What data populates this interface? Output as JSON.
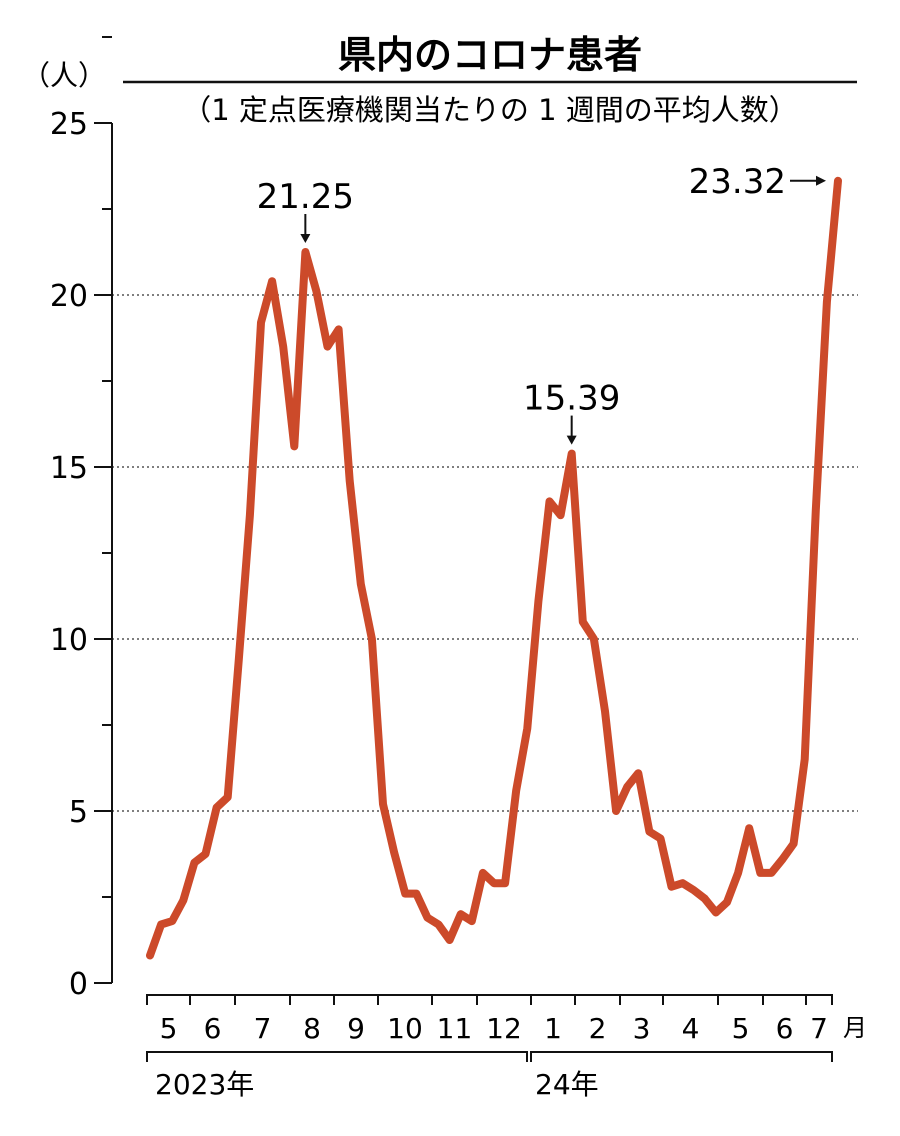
{
  "chart_data": {
    "type": "line",
    "title": "県内のコロナ患者",
    "subtitle": "（1 定点医療機関当たりの 1 週間の平均人数）",
    "ylabel": "（人）",
    "ylim": [
      0,
      25
    ],
    "yticks": [
      "0",
      "5",
      "10",
      "15",
      "20",
      "25"
    ],
    "grid": "dotted horizontal",
    "month_labels": [
      "5",
      "6",
      "7",
      "8",
      "9",
      "10",
      "11",
      "12",
      "1",
      "2",
      "3",
      "4",
      "5",
      "6",
      "7"
    ],
    "month_unit": "月",
    "year_labels": [
      "2023年",
      "24年"
    ],
    "color": "#cc4a2a",
    "values": [
      0.8,
      1.7,
      1.8,
      2.4,
      3.5,
      3.75,
      5.1,
      5.4,
      9.4,
      13.6,
      19.2,
      20.4,
      18.5,
      15.6,
      21.25,
      20.1,
      18.5,
      19.0,
      14.6,
      11.6,
      10.0,
      5.2,
      3.8,
      2.6,
      2.6,
      1.9,
      1.7,
      1.25,
      2.0,
      1.8,
      3.2,
      2.9,
      2.9,
      5.6,
      7.4,
      11.1,
      14.0,
      13.6,
      15.39,
      10.5,
      10.0,
      7.9,
      5.0,
      5.7,
      6.1,
      4.4,
      4.2,
      2.8,
      2.9,
      2.7,
      2.45,
      2.05,
      2.35,
      3.2,
      4.5,
      3.2,
      3.2,
      3.6,
      4.05,
      6.5,
      13.75,
      19.8,
      23.32
    ],
    "annotations": [
      {
        "index": 14,
        "label": "21.25"
      },
      {
        "index": 38,
        "label": "15.39"
      },
      {
        "index": 62,
        "label": "23.32"
      }
    ]
  }
}
